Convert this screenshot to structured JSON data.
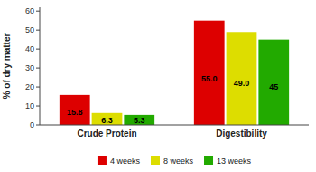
{
  "chart_data": {
    "type": "bar",
    "categories": [
      "Crude Protein",
      "Digestibility"
    ],
    "series": [
      {
        "name": "4 weeks",
        "color": "#dd0000",
        "values": [
          15.8,
          55.0
        ],
        "value_labels": [
          "15.8",
          "55.0"
        ]
      },
      {
        "name": "8 weeks",
        "color": "#dddd00",
        "values": [
          6.3,
          49.0
        ],
        "value_labels": [
          "6.3",
          "49.0"
        ]
      },
      {
        "name": "13 weeks",
        "color": "#22aa00",
        "values": [
          5.3,
          45.0
        ],
        "value_labels": [
          "5.3",
          "45"
        ]
      }
    ],
    "ylabel": "% of dry matter",
    "ylim": [
      0,
      62
    ],
    "yticks": [
      0,
      10,
      20,
      30,
      40,
      50,
      60
    ],
    "grid": false,
    "legend": "bottom",
    "data_labels": true
  }
}
